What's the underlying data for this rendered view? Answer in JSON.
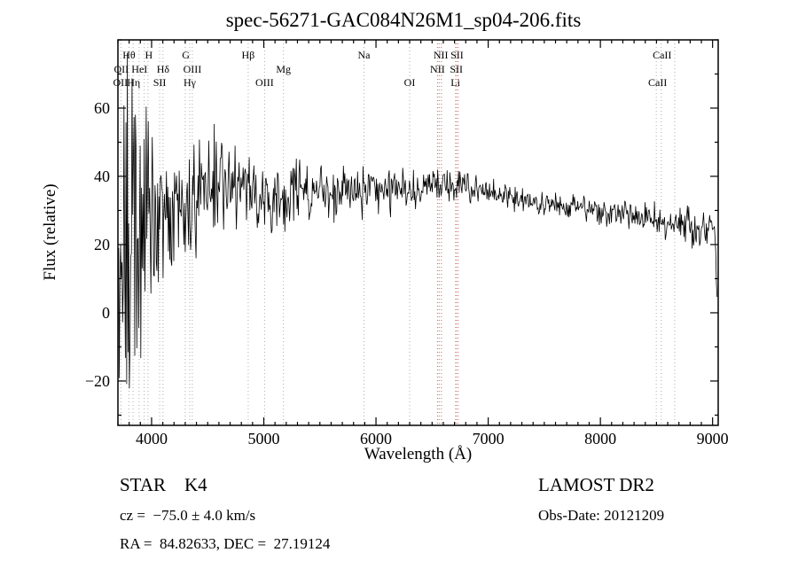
{
  "chart_data": {
    "type": "line",
    "title": "spec-56271-GAC084N26M1_sp04-206.fits",
    "xlabel": "Wavelength (Å)",
    "ylabel": "Flux (relative)",
    "xlim": [
      3700,
      9050
    ],
    "ylim": [
      -33,
      80
    ],
    "xticks": [
      4000,
      5000,
      6000,
      7000,
      8000,
      9000
    ],
    "x_minor_step": 100,
    "yticks": [
      -20,
      0,
      20,
      40,
      60
    ],
    "y_minor_step": 10,
    "grid": false,
    "legend": "none",
    "series_name": "spectrum",
    "line_color": "#000000",
    "line_colors": {
      "gray": "#a8b2a8",
      "red": "#cf6060"
    },
    "spectral_lines": [
      {
        "wl": 3727,
        "c": "gray"
      },
      {
        "wl": 3798,
        "c": "gray"
      },
      {
        "wl": 3835,
        "c": "gray"
      },
      {
        "wl": 3889,
        "c": "gray"
      },
      {
        "wl": 3934,
        "c": "gray"
      },
      {
        "wl": 3968,
        "c": "gray"
      },
      {
        "wl": 4072,
        "c": "gray"
      },
      {
        "wl": 4102,
        "c": "gray"
      },
      {
        "wl": 4300,
        "c": "gray"
      },
      {
        "wl": 4340,
        "c": "gray"
      },
      {
        "wl": 4363,
        "c": "gray"
      },
      {
        "wl": 4861,
        "c": "gray"
      },
      {
        "wl": 5007,
        "c": "gray"
      },
      {
        "wl": 5175,
        "c": "gray"
      },
      {
        "wl": 5893,
        "c": "gray"
      },
      {
        "wl": 6300,
        "c": "gray"
      },
      {
        "wl": 6548,
        "c": "red"
      },
      {
        "wl": 6563,
        "c": "red"
      },
      {
        "wl": 6583,
        "c": "red"
      },
      {
        "wl": 6708,
        "c": "gray"
      },
      {
        "wl": 6716,
        "c": "red"
      },
      {
        "wl": 6731,
        "c": "red"
      },
      {
        "wl": 8498,
        "c": "gray"
      },
      {
        "wl": 8542,
        "c": "gray"
      },
      {
        "wl": 8662,
        "c": "gray"
      }
    ],
    "line_labels": [
      {
        "text": "Hθ",
        "wl": 3798,
        "row": 1
      },
      {
        "text": "H",
        "wl": 3975,
        "row": 1
      },
      {
        "text": "G",
        "wl": 4305,
        "row": 1
      },
      {
        "text": "Hβ",
        "wl": 4861,
        "row": 1
      },
      {
        "text": "Na",
        "wl": 5893,
        "row": 1
      },
      {
        "text": "NII",
        "wl": 6578,
        "row": 1
      },
      {
        "text": "SII",
        "wl": 6722,
        "row": 1
      },
      {
        "text": "CaII",
        "wl": 8550,
        "row": 1
      },
      {
        "text": "OII",
        "wl": 3730,
        "row": 2
      },
      {
        "text": "HeI",
        "wl": 3892,
        "row": 2
      },
      {
        "text": "Hδ",
        "wl": 4102,
        "row": 2
      },
      {
        "text": "OIII",
        "wl": 4363,
        "row": 2
      },
      {
        "text": "Mg",
        "wl": 5175,
        "row": 2
      },
      {
        "text": "NII",
        "wl": 6548,
        "row": 2
      },
      {
        "text": "SII",
        "wl": 6716,
        "row": 2
      },
      {
        "text": "OII",
        "wl": 3722,
        "row": 3
      },
      {
        "text": "Hη",
        "wl": 3840,
        "row": 3
      },
      {
        "text": "SII",
        "wl": 4072,
        "row": 3
      },
      {
        "text": "Hγ",
        "wl": 4340,
        "row": 3
      },
      {
        "text": "OIII",
        "wl": 5007,
        "row": 3
      },
      {
        "text": "OI",
        "wl": 6300,
        "row": 3
      },
      {
        "text": "Li",
        "wl": 6708,
        "row": 3
      },
      {
        "text": "CaII",
        "wl": 8510,
        "row": 3
      }
    ],
    "spectrum": {
      "sample_step": 6,
      "seed": 20121209,
      "continuum": [
        [
          3700,
          14
        ],
        [
          3720,
          18
        ],
        [
          3760,
          22
        ],
        [
          3800,
          24
        ],
        [
          3850,
          23
        ],
        [
          3900,
          26
        ],
        [
          3950,
          27
        ],
        [
          4000,
          28
        ],
        [
          4060,
          27
        ],
        [
          4120,
          28
        ],
        [
          4180,
          29
        ],
        [
          4240,
          30
        ],
        [
          4300,
          31
        ],
        [
          4360,
          33
        ],
        [
          4420,
          35
        ],
        [
          4480,
          37
        ],
        [
          4540,
          38
        ],
        [
          4600,
          39
        ],
        [
          4660,
          38
        ],
        [
          4720,
          38
        ],
        [
          4780,
          37
        ],
        [
          4840,
          37
        ],
        [
          4900,
          36
        ],
        [
          4960,
          35
        ],
        [
          5020,
          35
        ],
        [
          5080,
          34
        ],
        [
          5140,
          33
        ],
        [
          5200,
          33
        ],
        [
          5260,
          34
        ],
        [
          5320,
          34
        ],
        [
          5400,
          35
        ],
        [
          5500,
          35
        ],
        [
          5600,
          35
        ],
        [
          5700,
          36
        ],
        [
          5800,
          36
        ],
        [
          5900,
          35
        ],
        [
          6000,
          36
        ],
        [
          6100,
          36
        ],
        [
          6200,
          36
        ],
        [
          6300,
          36
        ],
        [
          6400,
          36
        ],
        [
          6500,
          37
        ],
        [
          6600,
          37
        ],
        [
          6700,
          37
        ],
        [
          6800,
          37
        ],
        [
          6900,
          36
        ],
        [
          7000,
          35
        ],
        [
          7100,
          35
        ],
        [
          7200,
          34
        ],
        [
          7300,
          33
        ],
        [
          7400,
          33
        ],
        [
          7500,
          32
        ],
        [
          7600,
          32
        ],
        [
          7700,
          31
        ],
        [
          7800,
          31
        ],
        [
          7900,
          30
        ],
        [
          8000,
          30
        ],
        [
          8100,
          29
        ],
        [
          8200,
          29
        ],
        [
          8300,
          28
        ],
        [
          8400,
          28
        ],
        [
          8500,
          27
        ],
        [
          8600,
          26
        ],
        [
          8700,
          26
        ],
        [
          8800,
          25
        ],
        [
          8900,
          24
        ],
        [
          8950,
          25
        ],
        [
          9000,
          26
        ],
        [
          9015,
          25
        ],
        [
          9025,
          22
        ],
        [
          9035,
          6
        ],
        [
          9045,
          5
        ]
      ],
      "noise_amp": [
        [
          3700,
          20
        ],
        [
          3750,
          24
        ],
        [
          3800,
          25
        ],
        [
          3850,
          26
        ],
        [
          3900,
          23
        ],
        [
          3950,
          20
        ],
        [
          4000,
          15
        ],
        [
          4060,
          12
        ],
        [
          4120,
          11
        ],
        [
          4180,
          10
        ],
        [
          4240,
          9
        ],
        [
          4300,
          8.5
        ],
        [
          4360,
          8
        ],
        [
          4420,
          7.5
        ],
        [
          4500,
          8
        ],
        [
          4600,
          8
        ],
        [
          4700,
          7
        ],
        [
          4800,
          6.5
        ],
        [
          4900,
          6
        ],
        [
          5000,
          5.5
        ],
        [
          5100,
          5
        ],
        [
          5200,
          4.5
        ],
        [
          5400,
          4
        ],
        [
          5600,
          3.6
        ],
        [
          5800,
          3.2
        ],
        [
          6000,
          3
        ],
        [
          6200,
          2.8
        ],
        [
          6400,
          2.6
        ],
        [
          6600,
          2.4
        ],
        [
          6800,
          2.2
        ],
        [
          7000,
          2
        ],
        [
          7400,
          1.9
        ],
        [
          7800,
          1.9
        ],
        [
          8200,
          2
        ],
        [
          8600,
          2.2
        ],
        [
          8900,
          2.6
        ],
        [
          9000,
          2
        ],
        [
          9030,
          1.5
        ],
        [
          9045,
          1
        ]
      ]
    }
  },
  "footer": {
    "object_class": "STAR    K4",
    "survey": "LAMOST DR2",
    "cz": "cz =  −75.0 ± 4.0 km/s",
    "obs_date": "Obs-Date: 20121209",
    "radec": "RA =  84.82633, DEC =  27.19124"
  }
}
